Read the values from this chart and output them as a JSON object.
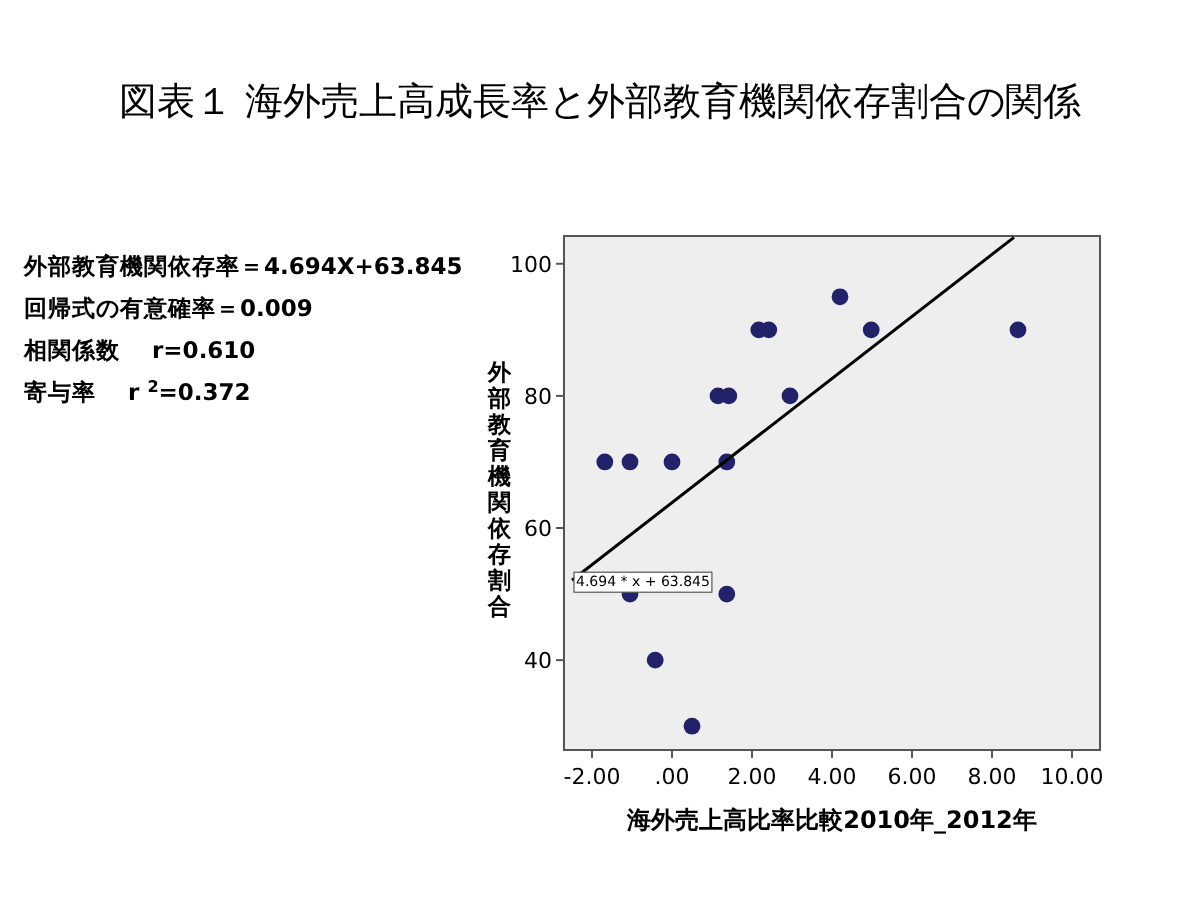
{
  "chart_data": {
    "type": "scatter",
    "title": "図表１ 海外売上高成長率と外部教育機関依存割合の関係",
    "xlabel": "海外売上高比率比較2010年_2012年",
    "ylabel": "外部教育機関依存割合",
    "xlim": [
      -2.7,
      10.7
    ],
    "ylim": [
      26.4,
      104.2
    ],
    "xticks": [
      {
        "value": -2,
        "label": "-2.00"
      },
      {
        "value": 0,
        "label": ".00"
      },
      {
        "value": 2,
        "label": "2.00"
      },
      {
        "value": 4,
        "label": "4.00"
      },
      {
        "value": 6,
        "label": "6.00"
      },
      {
        "value": 8,
        "label": "8.00"
      },
      {
        "value": 10,
        "label": "10.00"
      }
    ],
    "yticks": [
      40,
      60,
      80,
      100
    ],
    "marker": "circle",
    "series": [
      {
        "color": "#22226b",
        "x": [
          -1.68,
          -1.05,
          0,
          1.37,
          1.15,
          1.42,
          2.95,
          2.17,
          2.42,
          4.2,
          4.98,
          8.65,
          -1.05,
          1.37,
          -0.42,
          0.5
        ],
        "values": [
          70,
          70,
          70,
          70,
          80,
          80,
          80,
          90,
          90,
          95,
          90,
          90,
          50,
          50,
          40,
          30
        ]
      },
      {
        "type": "line",
        "marker": "none",
        "color": "#000000",
        "x": [
          -2.5,
          8.55
        ],
        "values": [
          52.1,
          104.0
        ]
      }
    ],
    "annotations": [
      "外部教育機関依存率＝4.694X+63.845",
      "回帰式の有意確率＝0.009",
      "相関係数　 r=0.610",
      "寄与率　 r $^{2}$=0.372",
      {
        "text": "4.694 * x + 63.845",
        "x": -2.5,
        "y": 52.1
      }
    ]
  }
}
